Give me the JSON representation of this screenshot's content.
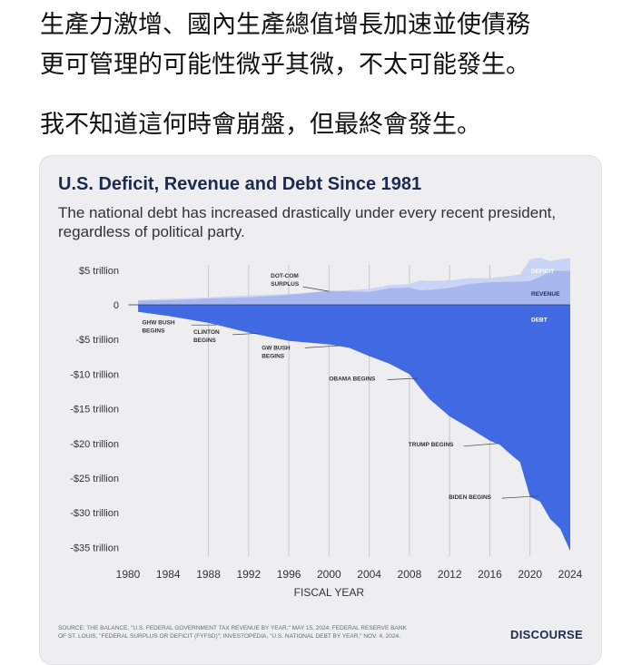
{
  "post": {
    "line1": "生產力激增、國內生產總值增長加速並使債務",
    "line2": "更可管理的可能性微乎其微，不太可能發生。",
    "line3": "我不知道這何時會崩盤，但最終會發生。"
  },
  "card": {
    "source_line1": "SOURCE: THE BALANCE, \"U.S. FEDERAL GOVERNMENT TAX REVENUE BY YEAR,\" MAY 15, 2024; FEDERAL RESERVE BANK",
    "source_line2": "OF ST. LOUIS, \"FEDERAL SURPLUS OR DEFICIT (FYFSD)\"; INVESTOPEDIA, \"U.S. NATIONAL DEBT BY YEAR,\" NOV. 4, 2024.",
    "brand": "DISCOURSE"
  },
  "chart_data": {
    "type": "area",
    "title": "U.S. Deficit, Revenue and Debt Since 1981",
    "subtitle": "The national debt has increased drastically under every recent president, regardless of political party.",
    "xlabel": "FISCAL YEAR",
    "ylabel": "",
    "x_ticks": [
      "1980",
      "1984",
      "1988",
      "1992",
      "1996",
      "2000",
      "2004",
      "2008",
      "2012",
      "2016",
      "2020",
      "2024"
    ],
    "y_ticks": [
      {
        "value": 5,
        "label": "$5 trillion"
      },
      {
        "value": 0,
        "label": "0"
      },
      {
        "value": -5,
        "label": "-$5 trillion"
      },
      {
        "value": -10,
        "label": "-$10 trillion"
      },
      {
        "value": -15,
        "label": "-$15 trillion"
      },
      {
        "value": -20,
        "label": "-$20 trillion"
      },
      {
        "value": -25,
        "label": "-$25 trillion"
      },
      {
        "value": -30,
        "label": "-$30 trillion"
      },
      {
        "value": -35,
        "label": "-$35 trillion"
      }
    ],
    "xlim": [
      1980,
      2024
    ],
    "ylim": [
      -36,
      5.5
    ],
    "vertical_gridlines": [
      1988,
      1992,
      1996,
      2000,
      2004,
      2008,
      2012,
      2016,
      2020
    ],
    "colors": {
      "revenue": "#a8b8ef",
      "deficit": "#c9d4f6",
      "debt": "#4169e1",
      "grid": "#c6c8ce",
      "text": "#333333",
      "title": "#1d2a4f"
    },
    "series": [
      {
        "name": "REVENUE",
        "x": [
          1981,
          1984,
          1988,
          1992,
          1996,
          2000,
          2001,
          2004,
          2006,
          2008,
          2009,
          2010,
          2012,
          2014,
          2016,
          2018,
          2020,
          2021,
          2022,
          2024
        ],
        "values": [
          0.6,
          0.67,
          0.91,
          1.09,
          1.45,
          2.03,
          1.99,
          1.88,
          2.41,
          2.52,
          2.1,
          2.16,
          2.45,
          3.02,
          3.27,
          3.33,
          3.42,
          4.05,
          4.9,
          4.92
        ]
      },
      {
        "name": "DEFICIT",
        "x": [
          1981,
          1984,
          1988,
          1992,
          1996,
          1998,
          2000,
          2001,
          2002,
          2004,
          2008,
          2009,
          2010,
          2012,
          2016,
          2019,
          2020,
          2021,
          2022,
          2023,
          2024
        ],
        "values": [
          0.08,
          0.19,
          0.16,
          0.29,
          0.11,
          -0.07,
          -0.24,
          -0.13,
          0.16,
          0.41,
          0.46,
          1.41,
          1.29,
          1.08,
          0.59,
          0.98,
          3.13,
          2.78,
          1.38,
          1.7,
          1.83
        ]
      },
      {
        "name": "DEBT",
        "x": [
          1981,
          1984,
          1988,
          1992,
          1996,
          2000,
          2002,
          2004,
          2006,
          2008,
          2009,
          2010,
          2012,
          2014,
          2016,
          2017,
          2018,
          2019,
          2020,
          2021,
          2022,
          2023,
          2024
        ],
        "values": [
          -1.0,
          -1.6,
          -2.6,
          -4.0,
          -5.2,
          -5.7,
          -6.2,
          -7.4,
          -8.5,
          -10.0,
          -11.9,
          -13.6,
          -16.1,
          -17.8,
          -19.6,
          -20.2,
          -21.5,
          -22.7,
          -27.7,
          -28.4,
          -30.9,
          -32.3,
          -35.5
        ]
      }
    ],
    "labels": {
      "deficit": "DEFICIT",
      "revenue": "REVENUE",
      "debt": "DEBT"
    },
    "annotations": [
      {
        "text": "DOT-COM\nSURPLUS",
        "x": 2000,
        "y": 1.9
      },
      {
        "text": "GHW BUSH\nBEGINS",
        "x": 1989,
        "y": -2.9
      },
      {
        "text": "CLINTON\nBEGINS",
        "x": 1993,
        "y": -4.1
      },
      {
        "text": "GW BUSH\nBEGINS",
        "x": 2001,
        "y": -5.8
      },
      {
        "text": "OBAMA BEGINS",
        "x": 2009,
        "y": -10.6
      },
      {
        "text": "TRUMP BEGINS",
        "x": 2017,
        "y": -19.9
      },
      {
        "text": "BIDEN BEGINS",
        "x": 2021,
        "y": -27.5
      }
    ]
  }
}
